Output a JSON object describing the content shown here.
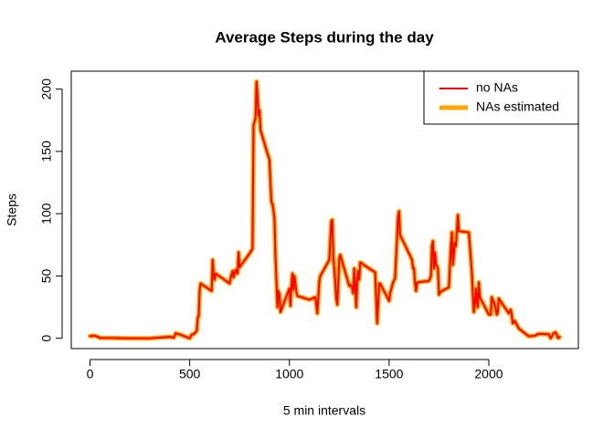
{
  "chart_data": {
    "type": "line",
    "title": "Average Steps during the day",
    "x_label": "5 min intervals",
    "y_label": "Steps",
    "x": [
      0,
      25,
      50,
      100,
      200,
      300,
      400,
      420,
      430,
      440,
      450,
      500,
      510,
      520,
      535,
      540,
      545,
      550,
      555,
      600,
      610,
      615,
      620,
      625,
      630,
      700,
      705,
      715,
      720,
      730,
      740,
      745,
      750,
      800,
      815,
      820,
      830,
      835,
      840,
      845,
      850,
      855,
      900,
      905,
      910,
      915,
      920,
      925,
      930,
      935,
      940,
      945,
      950,
      955,
      1000,
      1005,
      1010,
      1015,
      1020,
      1025,
      1030,
      1035,
      1040,
      1100,
      1130,
      1135,
      1140,
      1150,
      1155,
      1200,
      1210,
      1215,
      1220,
      1230,
      1235,
      1240,
      1245,
      1250,
      1255,
      1300,
      1305,
      1310,
      1315,
      1320,
      1325,
      1330,
      1335,
      1340,
      1345,
      1350,
      1355,
      1400,
      1430,
      1440,
      1445,
      1450,
      1455,
      1500,
      1505,
      1520,
      1530,
      1545,
      1550,
      1555,
      1615,
      1620,
      1625,
      1630,
      1635,
      1640,
      1645,
      1700,
      1710,
      1715,
      1720,
      1725,
      1730,
      1735,
      1745,
      1750,
      1755,
      1800,
      1805,
      1810,
      1815,
      1820,
      1825,
      1830,
      1835,
      1840,
      1845,
      1850,
      1900,
      1915,
      1920,
      1925,
      1930,
      1935,
      1940,
      1945,
      1950,
      1955,
      2000,
      2005,
      2010,
      2015,
      2030,
      2040,
      2045,
      2050,
      2100,
      2110,
      2115,
      2120,
      2130,
      2150,
      2200,
      2230,
      2250,
      2300,
      2310,
      2325,
      2335,
      2340,
      2345,
      2350,
      2355
    ],
    "series": [
      {
        "name": "NAs estimated",
        "color": "#ffa500",
        "line_width": 5,
        "values": [
          1.7,
          2.1,
          0.3,
          0.3,
          0,
          0,
          1.2,
          0.4,
          4.1,
          3.5,
          3.1,
          0,
          3,
          3.3,
          6,
          16,
          18,
          39,
          44,
          39,
          38,
          63,
          50,
          47,
          52,
          44,
          48,
          54,
          49,
          55,
          52,
          69,
          57,
          68,
          72,
          171,
          177,
          206,
          195,
          179,
          183,
          167,
          143,
          124,
          109,
          108,
          103,
          96,
          66,
          46,
          25,
          38,
          35,
          21,
          40,
          26,
          42,
          52,
          39,
          50,
          44,
          37,
          34,
          31,
          33,
          27,
          20,
          46,
          50,
          63,
          94,
          95,
          66,
          45,
          32,
          27,
          44,
          64,
          67,
          42,
          43,
          42,
          40,
          36,
          56,
          43,
          25,
          46,
          54,
          47,
          61,
          56,
          53,
          12,
          27,
          44,
          44,
          30,
          36,
          45,
          48,
          98,
          102,
          83,
          63,
          56,
          56,
          44,
          38,
          44,
          45,
          46,
          50,
          74,
          78,
          56,
          69,
          60,
          56,
          35,
          37,
          41,
          58,
          74,
          85,
          59,
          68,
          77,
          74,
          86,
          99,
          86,
          85,
          53,
          36,
          21,
          27,
          40,
          30,
          25,
          45,
          33,
          19,
          19,
          19,
          33,
          27,
          19,
          21,
          32,
          20,
          23,
          19,
          12,
          14,
          8,
          1.6,
          2,
          3.6,
          3.3,
          0,
          4.1,
          4.7,
          3.3,
          0.6,
          0.2,
          1.1
        ]
      },
      {
        "name": "no NAs",
        "color": "#ff0000",
        "line_width": 2,
        "values": [
          1.7,
          2.1,
          0.3,
          0.3,
          0,
          0,
          1.2,
          0.4,
          4.1,
          3.5,
          3.1,
          0,
          3,
          3.3,
          6,
          16,
          18,
          39,
          44,
          39,
          38,
          63,
          50,
          47,
          52,
          44,
          48,
          54,
          49,
          55,
          52,
          69,
          57,
          68,
          72,
          171,
          177,
          206,
          195,
          179,
          183,
          167,
          143,
          124,
          109,
          108,
          103,
          96,
          66,
          46,
          25,
          38,
          35,
          21,
          40,
          26,
          42,
          52,
          39,
          50,
          44,
          37,
          34,
          31,
          33,
          27,
          20,
          46,
          50,
          63,
          94,
          95,
          66,
          45,
          32,
          27,
          44,
          64,
          67,
          42,
          43,
          42,
          40,
          36,
          56,
          43,
          25,
          46,
          54,
          47,
          61,
          56,
          53,
          12,
          27,
          44,
          44,
          30,
          36,
          45,
          48,
          98,
          102,
          83,
          63,
          56,
          56,
          44,
          38,
          44,
          45,
          46,
          50,
          74,
          78,
          56,
          69,
          60,
          56,
          35,
          37,
          41,
          58,
          74,
          85,
          59,
          68,
          77,
          74,
          86,
          99,
          86,
          85,
          53,
          36,
          21,
          27,
          40,
          30,
          25,
          45,
          33,
          19,
          19,
          19,
          33,
          27,
          19,
          21,
          32,
          20,
          23,
          19,
          12,
          14,
          8,
          1.6,
          2,
          3.6,
          3.3,
          0,
          4.1,
          4.7,
          3.3,
          0.6,
          0.2,
          1.1
        ]
      }
    ],
    "legend_order": [
      1,
      0
    ],
    "legend": "topright",
    "xlim": [
      -94.2,
      2449.2
    ],
    "ylim": [
      -8.25,
      214.4
    ],
    "xticks": [
      0,
      500,
      1000,
      1500,
      2000
    ],
    "yticks": [
      0,
      50,
      100,
      150,
      200
    ]
  }
}
